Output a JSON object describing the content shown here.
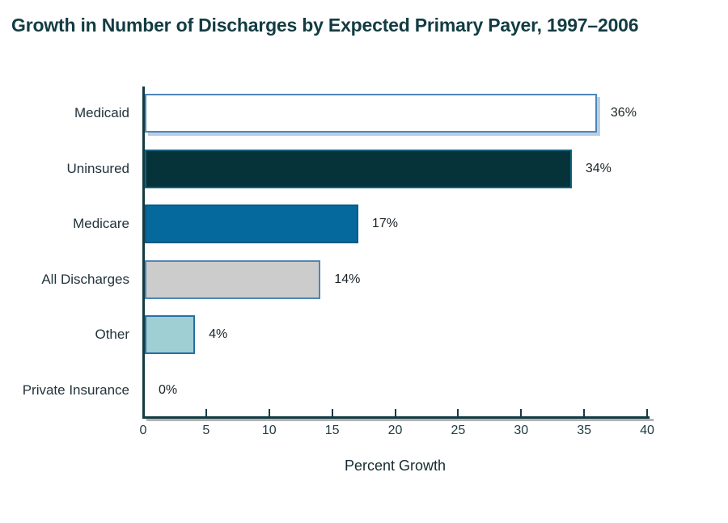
{
  "chart_data": {
    "type": "bar",
    "orientation": "horizontal",
    "title": "Growth in Number of Discharges by Expected Primary Payer, 1997–2006",
    "categories": [
      "Medicaid",
      "Uninsured",
      "Medicare",
      "All Discharges",
      "Other",
      "Private Insurance"
    ],
    "values": [
      36,
      34,
      17,
      14,
      4,
      0
    ],
    "value_labels": [
      "36%",
      "34%",
      "17%",
      "14%",
      "4%",
      "0%"
    ],
    "xlabel": "Percent Growth",
    "xlim": [
      0,
      40
    ],
    "xticks": [
      0,
      5,
      10,
      15,
      20,
      25,
      30,
      35,
      40
    ],
    "grid": "off",
    "legend": "none",
    "bar_colors": [
      "#ffffff",
      "#06333a",
      "#06699e",
      "#cccccc",
      "#9fcfd3",
      "transparent"
    ],
    "bar_borders": [
      "#4d86ba",
      "#11617c",
      "#0a5a88",
      "#4d86ba",
      "#2471a3",
      "transparent"
    ],
    "bar_shadow": [
      true,
      false,
      false,
      false,
      false,
      false
    ],
    "shadow_color": "#b9cfe4",
    "axis_color": "#123b42",
    "axis_shadow_color": "#b3b3b3",
    "title_color": "#123c42",
    "category_label_color": "#22333b",
    "value_label_color": "#1a2227",
    "tick_label_color": "#1c3b41"
  }
}
